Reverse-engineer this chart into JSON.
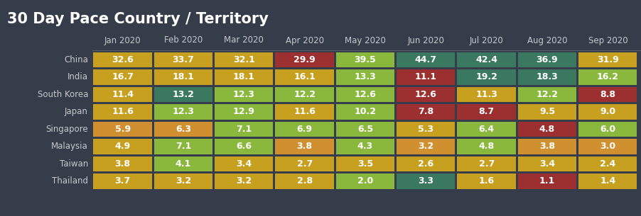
{
  "title": "30 Day Pace Country / Territory",
  "columns": [
    "Jan 2020",
    "Feb 2020",
    "Mar 2020",
    "Apr 2020",
    "May 2020",
    "Jun 2020",
    "Jul 2020",
    "Aug 2020",
    "Sep 2020"
  ],
  "rows": [
    "China",
    "India",
    "South Korea",
    "Japan",
    "Singapore",
    "Malaysia",
    "Taiwan",
    "Thailand"
  ],
  "values": [
    [
      32.6,
      33.7,
      32.1,
      29.9,
      39.5,
      44.7,
      42.4,
      36.9,
      31.9
    ],
    [
      16.7,
      18.1,
      18.1,
      16.1,
      13.3,
      11.1,
      19.2,
      18.3,
      16.2
    ],
    [
      11.4,
      13.2,
      12.3,
      12.2,
      12.6,
      12.6,
      11.3,
      12.2,
      8.8
    ],
    [
      11.6,
      12.3,
      12.9,
      11.6,
      10.2,
      7.8,
      8.7,
      9.5,
      9.0
    ],
    [
      5.9,
      6.3,
      7.1,
      6.9,
      6.5,
      5.3,
      6.4,
      4.8,
      6.0
    ],
    [
      4.9,
      7.1,
      6.6,
      3.8,
      4.3,
      3.2,
      4.8,
      3.8,
      3.0
    ],
    [
      3.8,
      4.1,
      3.4,
      2.7,
      3.5,
      2.6,
      2.7,
      3.4,
      2.4
    ],
    [
      3.7,
      3.2,
      3.2,
      2.8,
      2.0,
      3.3,
      1.6,
      1.1,
      1.4
    ]
  ],
  "cell_colors": [
    [
      "#c8a020",
      "#c8a020",
      "#c8a020",
      "#9c3030",
      "#8ab83c",
      "#3a7860",
      "#3a7860",
      "#3a7860",
      "#c8a020"
    ],
    [
      "#c8a020",
      "#c8a020",
      "#c8a020",
      "#c8a020",
      "#8ab83c",
      "#9c3030",
      "#3a7860",
      "#3a7860",
      "#8ab83c"
    ],
    [
      "#c8a020",
      "#3a7860",
      "#8ab83c",
      "#8ab83c",
      "#8ab83c",
      "#9c3030",
      "#c8a020",
      "#8ab83c",
      "#9c3030"
    ],
    [
      "#c8a020",
      "#8ab83c",
      "#8ab83c",
      "#c8a020",
      "#8ab83c",
      "#9c3030",
      "#9c3030",
      "#c8a020",
      "#c8a020"
    ],
    [
      "#d09030",
      "#d09030",
      "#8ab83c",
      "#8ab83c",
      "#8ab83c",
      "#c8a020",
      "#8ab83c",
      "#9c3030",
      "#8ab83c"
    ],
    [
      "#c8a020",
      "#8ab83c",
      "#8ab83c",
      "#d09030",
      "#8ab83c",
      "#d09030",
      "#8ab83c",
      "#d09030",
      "#d09030"
    ],
    [
      "#c8a020",
      "#8ab83c",
      "#c8a020",
      "#c8a020",
      "#c8a020",
      "#c8a020",
      "#c8a020",
      "#c8a020",
      "#c8a020"
    ],
    [
      "#c8a020",
      "#c8a020",
      "#c8a020",
      "#c8a020",
      "#8ab83c",
      "#3a7860",
      "#c8a020",
      "#9c3030",
      "#c8a020"
    ]
  ],
  "bg_color": "#353d4a",
  "text_color": "#ffffff",
  "header_text_color": "#c8c8c8",
  "row_label_color": "#c8c8c8",
  "title_color": "#ffffff",
  "title_fontsize": 15,
  "header_fontsize": 8.5,
  "cell_fontsize": 9,
  "row_fontsize": 8.5,
  "separator_color": "#555f6e"
}
